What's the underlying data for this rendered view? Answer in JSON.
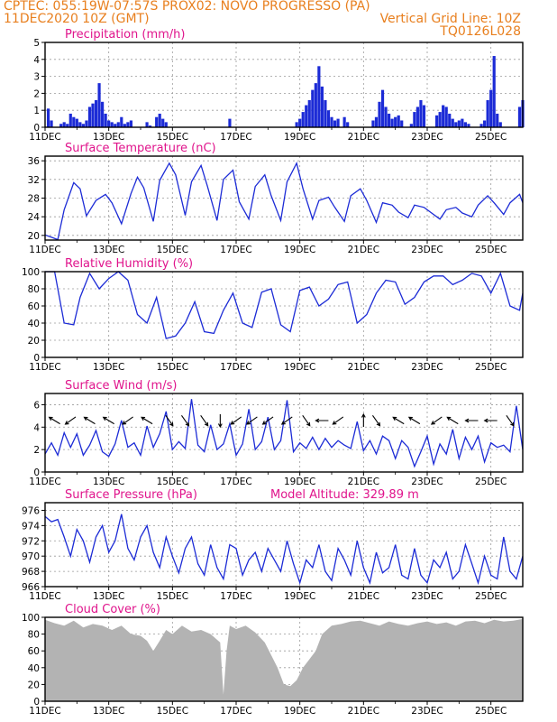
{
  "header": {
    "line1_left": "CPTEC:   055:19W-07:57S   PROX02: NOVO PROGRESSO (PA)",
    "line2_left": "11DEC2020 10Z (GMT)",
    "line2_right": "Vertical Grid Line: 10Z",
    "line3_right": "TQ0126L028"
  },
  "colors": {
    "header": "#e87f1e",
    "title": "#e0148c",
    "series": "#1c2bd6",
    "cloud": "#b3b3b3"
  },
  "chart_data": [
    {
      "id": "precip",
      "type": "bar",
      "title": "Precipitation (mm/h)",
      "ylim": [
        0,
        5
      ],
      "yticks": [
        0,
        1,
        2,
        3,
        4,
        5
      ],
      "grid": true,
      "x_start_day": 11,
      "x_end_day": 26,
      "xtick_labels": [
        "11DEC",
        "13DEC",
        "15DEC",
        "17DEC",
        "19DEC",
        "21DEC",
        "23DEC",
        "25DEC"
      ],
      "x": [
        11.1,
        11.2,
        11.5,
        11.6,
        11.7,
        11.8,
        11.9,
        12.0,
        12.1,
        12.2,
        12.3,
        12.4,
        12.5,
        12.6,
        12.7,
        12.8,
        12.9,
        13.0,
        13.1,
        13.2,
        13.3,
        13.4,
        13.5,
        13.6,
        13.7,
        14.2,
        14.3,
        14.5,
        14.6,
        14.7,
        14.8,
        16.8,
        18.9,
        19.0,
        19.1,
        19.2,
        19.3,
        19.4,
        19.5,
        19.6,
        19.7,
        19.8,
        19.9,
        20.0,
        20.1,
        20.2,
        20.4,
        20.5,
        21.3,
        21.4,
        21.5,
        21.6,
        21.7,
        21.8,
        21.9,
        22.0,
        22.1,
        22.2,
        22.5,
        22.6,
        22.7,
        22.8,
        22.9,
        23.3,
        23.4,
        23.5,
        23.6,
        23.7,
        23.8,
        23.9,
        24.0,
        24.1,
        24.2,
        24.3,
        24.7,
        24.8,
        24.9,
        25.0,
        25.1,
        25.2,
        25.3,
        25.9,
        26.0
      ],
      "values": [
        1.1,
        0.4,
        0.2,
        0.3,
        0.2,
        0.8,
        0.6,
        0.5,
        0.3,
        0.2,
        0.4,
        1.2,
        1.4,
        1.6,
        2.6,
        1.5,
        0.8,
        0.4,
        0.3,
        0.2,
        0.3,
        0.6,
        0.2,
        0.3,
        0.4,
        0.3,
        0.1,
        0.6,
        0.8,
        0.5,
        0.3,
        0.5,
        0.3,
        0.5,
        0.9,
        1.3,
        1.6,
        2.2,
        2.6,
        3.6,
        2.4,
        1.6,
        1.0,
        0.6,
        0.4,
        0.5,
        0.6,
        0.3,
        0.4,
        0.6,
        1.5,
        2.2,
        1.2,
        0.8,
        0.5,
        0.6,
        0.7,
        0.4,
        0.2,
        0.9,
        1.2,
        1.6,
        1.3,
        0.7,
        0.9,
        1.3,
        1.2,
        0.8,
        0.5,
        0.3,
        0.4,
        0.5,
        0.3,
        0.2,
        0.2,
        0.4,
        1.6,
        2.2,
        4.2,
        0.8,
        0.3,
        1.2,
        1.6
      ]
    },
    {
      "id": "temp",
      "type": "line",
      "title": "Surface Temperature (nC)",
      "ylim": [
        19,
        37
      ],
      "yticks": [
        20,
        24,
        28,
        32,
        36
      ],
      "grid": true,
      "x_start_day": 11,
      "x_end_day": 26,
      "xtick_labels": [
        "11DEC",
        "13DEC",
        "15DEC",
        "17DEC",
        "19DEC",
        "21DEC",
        "23DEC",
        "25DEC"
      ],
      "x": [
        11.0,
        11.2,
        11.4,
        11.6,
        11.9,
        12.1,
        12.3,
        12.6,
        12.9,
        13.1,
        13.4,
        13.7,
        13.9,
        14.1,
        14.4,
        14.6,
        14.9,
        15.1,
        15.4,
        15.6,
        15.9,
        16.1,
        16.4,
        16.6,
        16.9,
        17.1,
        17.4,
        17.6,
        17.9,
        18.1,
        18.4,
        18.6,
        18.9,
        19.1,
        19.4,
        19.6,
        19.9,
        20.1,
        20.4,
        20.6,
        20.9,
        21.1,
        21.4,
        21.6,
        21.9,
        22.1,
        22.4,
        22.6,
        22.9,
        23.1,
        23.4,
        23.6,
        23.9,
        24.1,
        24.4,
        24.6,
        24.9,
        25.1,
        25.4,
        25.6,
        25.9,
        26.0
      ],
      "values": [
        20.1,
        19.6,
        19.1,
        25.5,
        31.3,
        30.0,
        24.2,
        27.5,
        28.8,
        27.0,
        22.5,
        29.0,
        32.5,
        30.2,
        23.0,
        31.8,
        35.5,
        33.0,
        24.3,
        31.5,
        35.0,
        30.5,
        23.2,
        32.0,
        34.0,
        27.2,
        23.5,
        30.5,
        33.0,
        28.5,
        23.2,
        31.5,
        35.5,
        30.0,
        23.5,
        27.5,
        28.2,
        26.0,
        23.0,
        28.5,
        30.0,
        27.5,
        22.8,
        27.0,
        26.5,
        25.0,
        23.8,
        26.5,
        26.0,
        25.0,
        23.5,
        25.5,
        26.0,
        24.8,
        24.0,
        26.5,
        28.5,
        27.0,
        24.5,
        27.0,
        28.8,
        27.0
      ]
    },
    {
      "id": "rh",
      "type": "line",
      "title": "Relative Humidity (%)",
      "ylim": [
        0,
        100
      ],
      "yticks": [
        0,
        20,
        40,
        60,
        80,
        100
      ],
      "grid": true,
      "x_start_day": 11,
      "x_end_day": 26,
      "xtick_labels": [
        "11DEC",
        "13DEC",
        "15DEC",
        "17DEC",
        "19DEC",
        "21DEC",
        "23DEC",
        "25DEC"
      ],
      "x": [
        11.0,
        11.3,
        11.6,
        11.9,
        12.1,
        12.4,
        12.7,
        13.0,
        13.3,
        13.6,
        13.9,
        14.2,
        14.5,
        14.8,
        15.1,
        15.4,
        15.7,
        16.0,
        16.3,
        16.6,
        16.9,
        17.2,
        17.5,
        17.8,
        18.1,
        18.4,
        18.7,
        19.0,
        19.3,
        19.6,
        19.9,
        20.2,
        20.5,
        20.8,
        21.1,
        21.4,
        21.7,
        22.0,
        22.3,
        22.6,
        22.9,
        23.2,
        23.5,
        23.8,
        24.1,
        24.4,
        24.7,
        25.0,
        25.3,
        25.6,
        25.9,
        26.0
      ],
      "values": [
        100,
        100,
        40,
        38,
        70,
        98,
        80,
        92,
        100,
        90,
        50,
        40,
        70,
        22,
        25,
        40,
        65,
        30,
        28,
        55,
        75,
        40,
        35,
        76,
        80,
        38,
        30,
        78,
        82,
        60,
        68,
        85,
        88,
        40,
        50,
        75,
        90,
        88,
        62,
        70,
        88,
        95,
        95,
        85,
        90,
        98,
        95,
        75,
        98,
        60,
        55,
        75
      ]
    },
    {
      "id": "wind",
      "type": "line",
      "title": "Surface Wind (m/s)",
      "ylim": [
        0,
        7
      ],
      "yticks": [
        0,
        2,
        4,
        6
      ],
      "grid": true,
      "x_start_day": 11,
      "x_end_day": 26,
      "xtick_labels": [
        "11DEC",
        "13DEC",
        "15DEC",
        "17DEC",
        "19DEC",
        "21DEC",
        "23DEC",
        "25DEC"
      ],
      "x": [
        11.0,
        11.2,
        11.4,
        11.6,
        11.8,
        12.0,
        12.2,
        12.4,
        12.6,
        12.8,
        13.0,
        13.2,
        13.4,
        13.6,
        13.8,
        14.0,
        14.2,
        14.4,
        14.6,
        14.8,
        15.0,
        15.2,
        15.4,
        15.6,
        15.8,
        16.0,
        16.2,
        16.4,
        16.6,
        16.8,
        17.0,
        17.2,
        17.4,
        17.6,
        17.8,
        18.0,
        18.2,
        18.4,
        18.6,
        18.8,
        19.0,
        19.2,
        19.4,
        19.6,
        19.8,
        20.0,
        20.2,
        20.4,
        20.6,
        20.8,
        21.0,
        21.2,
        21.4,
        21.6,
        21.8,
        22.0,
        22.2,
        22.4,
        22.6,
        22.8,
        23.0,
        23.2,
        23.4,
        23.6,
        23.8,
        24.0,
        24.2,
        24.4,
        24.6,
        24.8,
        25.0,
        25.2,
        25.4,
        25.6,
        25.8,
        26.0
      ],
      "values": [
        1.6,
        2.6,
        1.5,
        3.5,
        2.2,
        3.4,
        1.5,
        2.4,
        3.7,
        1.8,
        1.4,
        2.5,
        4.6,
        2.2,
        2.6,
        1.5,
        4.1,
        2.2,
        3.4,
        5.4,
        2.0,
        2.7,
        2.1,
        6.5,
        2.4,
        1.8,
        4.2,
        2.0,
        2.5,
        4.3,
        1.5,
        2.5,
        5.6,
        2.0,
        2.7,
        4.9,
        2.0,
        2.8,
        6.4,
        1.8,
        2.6,
        2.1,
        3.1,
        2.0,
        3.0,
        2.2,
        2.8,
        2.4,
        2.1,
        4.5,
        1.9,
        2.8,
        1.6,
        3.2,
        2.8,
        1.2,
        2.8,
        2.2,
        0.5,
        1.8,
        3.2,
        0.7,
        2.5,
        1.6,
        3.8,
        1.2,
        3.1,
        2.0,
        3.2,
        0.9,
        2.6,
        2.2,
        2.4,
        1.8,
        5.9,
        2.0
      ],
      "barbs": [
        {
          "x": 11.3,
          "dir": "upleft"
        },
        {
          "x": 11.8,
          "dir": "downleft"
        },
        {
          "x": 12.4,
          "dir": "upleft"
        },
        {
          "x": 13.0,
          "dir": "upleft"
        },
        {
          "x": 13.6,
          "dir": "downleft"
        },
        {
          "x": 14.2,
          "dir": "upleft"
        },
        {
          "x": 14.9,
          "dir": "downright"
        },
        {
          "x": 15.4,
          "dir": "downright"
        },
        {
          "x": 16.0,
          "dir": "downright"
        },
        {
          "x": 16.5,
          "dir": "down"
        },
        {
          "x": 17.0,
          "dir": "downleft"
        },
        {
          "x": 17.5,
          "dir": "downleft"
        },
        {
          "x": 18.0,
          "dir": "downleft"
        },
        {
          "x": 18.6,
          "dir": "downleft"
        },
        {
          "x": 19.2,
          "dir": "downright"
        },
        {
          "x": 19.7,
          "dir": "left"
        },
        {
          "x": 20.2,
          "dir": "downleft"
        },
        {
          "x": 21.0,
          "dir": "up"
        },
        {
          "x": 21.4,
          "dir": "downright"
        },
        {
          "x": 22.1,
          "dir": "upleft"
        },
        {
          "x": 22.6,
          "dir": "upleft"
        },
        {
          "x": 23.3,
          "dir": "downleft"
        },
        {
          "x": 23.8,
          "dir": "upleft"
        },
        {
          "x": 24.4,
          "dir": "left"
        },
        {
          "x": 25.0,
          "dir": "left"
        },
        {
          "x": 25.6,
          "dir": "downright"
        }
      ]
    },
    {
      "id": "pres",
      "type": "line",
      "title": "Surface Pressure (hPa)",
      "annotation": "Model Altitude: 329.89 m",
      "ylim": [
        966,
        977
      ],
      "yticks": [
        966,
        968,
        970,
        972,
        974,
        976
      ],
      "grid": true,
      "x_start_day": 11,
      "x_end_day": 26,
      "xtick_labels": [
        "11DEC",
        "13DEC",
        "15DEC",
        "17DEC",
        "19DEC",
        "21DEC",
        "23DEC",
        "25DEC"
      ],
      "x": [
        11.0,
        11.2,
        11.4,
        11.6,
        11.8,
        12.0,
        12.2,
        12.4,
        12.6,
        12.8,
        13.0,
        13.2,
        13.4,
        13.6,
        13.8,
        14.0,
        14.2,
        14.4,
        14.6,
        14.8,
        15.0,
        15.2,
        15.4,
        15.6,
        15.8,
        16.0,
        16.2,
        16.4,
        16.6,
        16.8,
        17.0,
        17.2,
        17.4,
        17.6,
        17.8,
        18.0,
        18.2,
        18.4,
        18.6,
        18.8,
        19.0,
        19.2,
        19.4,
        19.6,
        19.8,
        20.0,
        20.2,
        20.4,
        20.6,
        20.8,
        21.0,
        21.2,
        21.4,
        21.6,
        21.8,
        22.0,
        22.2,
        22.4,
        22.6,
        22.8,
        23.0,
        23.2,
        23.4,
        23.6,
        23.8,
        24.0,
        24.2,
        24.4,
        24.6,
        24.8,
        25.0,
        25.2,
        25.4,
        25.6,
        25.8,
        26.0
      ],
      "values": [
        975.2,
        974.5,
        974.8,
        972.5,
        970.0,
        973.5,
        972.0,
        969.2,
        972.5,
        974.0,
        970.5,
        972.0,
        975.5,
        971.0,
        969.5,
        972.5,
        974.0,
        970.5,
        968.5,
        972.5,
        970.0,
        967.8,
        971.0,
        972.5,
        969.0,
        967.5,
        971.5,
        968.5,
        967.0,
        971.5,
        971.0,
        967.5,
        969.5,
        970.5,
        968.0,
        971.0,
        969.5,
        968.0,
        972.0,
        969.0,
        966.5,
        969.5,
        968.5,
        971.5,
        968.0,
        966.8,
        971.0,
        969.5,
        967.5,
        972.0,
        968.5,
        966.5,
        970.5,
        967.8,
        968.5,
        971.5,
        967.5,
        967.0,
        971.0,
        967.5,
        966.5,
        969.5,
        968.5,
        970.5,
        967.0,
        968.0,
        971.5,
        969.0,
        966.5,
        970.0,
        967.5,
        967.0,
        972.5,
        968.0,
        967.0,
        970.0
      ]
    },
    {
      "id": "cloud",
      "type": "area",
      "title": "Cloud Cover (%)",
      "ylim": [
        0,
        100
      ],
      "yticks": [
        0,
        20,
        40,
        60,
        80,
        100
      ],
      "grid": true,
      "x_start_day": 11,
      "x_end_day": 26,
      "xtick_labels": [
        "11DEC",
        "13DEC",
        "15DEC",
        "17DEC",
        "19DEC",
        "21DEC",
        "23DEC",
        "25DEC"
      ],
      "x": [
        11.0,
        11.3,
        11.6,
        11.9,
        12.2,
        12.5,
        12.8,
        13.1,
        13.4,
        13.7,
        14.0,
        14.2,
        14.4,
        14.6,
        14.8,
        15.0,
        15.3,
        15.6,
        15.9,
        16.2,
        16.5,
        16.6,
        16.7,
        16.8,
        17.0,
        17.3,
        17.6,
        17.9,
        18.1,
        18.3,
        18.5,
        18.7,
        18.9,
        19.1,
        19.3,
        19.5,
        19.7,
        20.0,
        20.3,
        20.6,
        20.9,
        21.2,
        21.5,
        21.8,
        22.1,
        22.4,
        22.7,
        23.0,
        23.3,
        23.6,
        23.9,
        24.2,
        24.5,
        24.8,
        25.1,
        25.4,
        25.7,
        26.0
      ],
      "values": [
        97,
        93,
        90,
        96,
        88,
        92,
        90,
        85,
        90,
        80,
        78,
        72,
        60,
        72,
        85,
        80,
        90,
        83,
        85,
        80,
        70,
        8,
        60,
        90,
        86,
        90,
        82,
        70,
        55,
        40,
        20,
        18,
        25,
        40,
        50,
        60,
        80,
        90,
        92,
        95,
        96,
        93,
        90,
        95,
        92,
        90,
        93,
        95,
        92,
        94,
        90,
        95,
        96,
        93,
        97,
        95,
        96,
        98
      ]
    }
  ]
}
